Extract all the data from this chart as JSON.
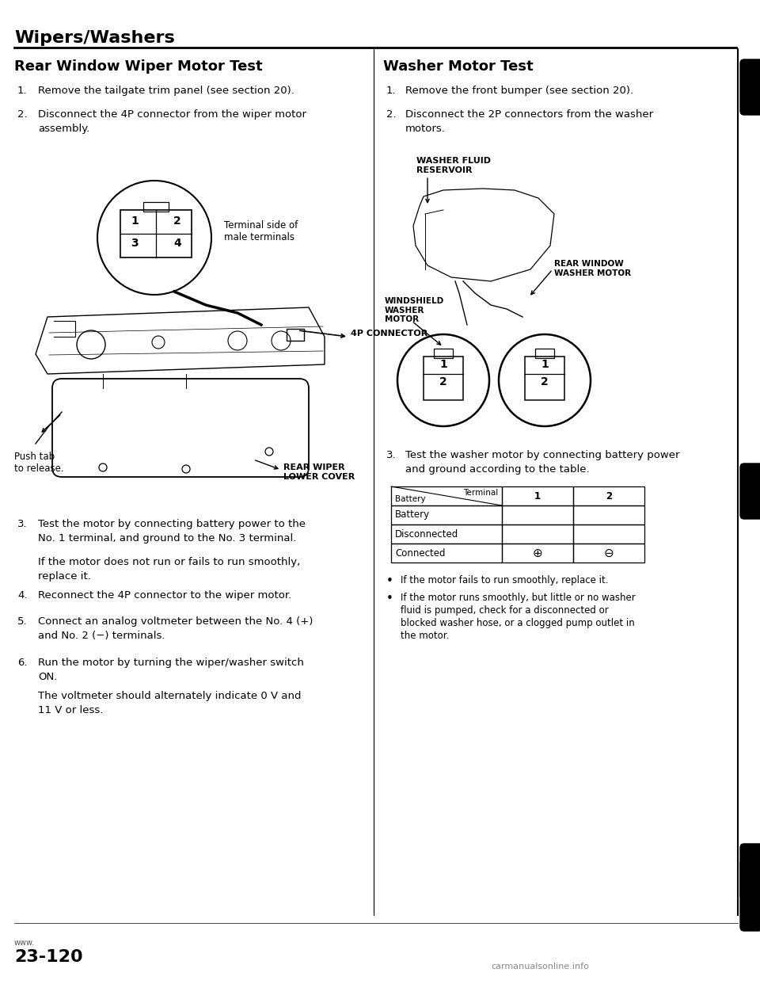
{
  "page_title": "Wipers/Washers",
  "left_section_title": "Rear Window Wiper Motor Test",
  "right_section_title": "Washer Motor Test",
  "left_step1": "Remove the tailgate trim panel (see section 20).",
  "left_step2": "Disconnect the 4P connector from the wiper motor\nassembly.",
  "left_step3a": "Test the motor by connecting battery power to the\nNo. 1 terminal, and ground to the No. 3 terminal.",
  "left_step3b": "If the motor does not run or fails to run smoothly,\nreplace it.",
  "left_step4": "Reconnect the 4P connector to the wiper motor.",
  "left_step5": "Connect an analog voltmeter between the No. 4 (+)\nand No. 2 (−) terminals.",
  "left_step6a": "Run the motor by turning the wiper/washer switch\nON.",
  "left_step6b": "The voltmeter should alternately indicate 0 V and\n11 V or less.",
  "right_step1": "Remove the front bumper (see section 20).",
  "right_step2": "Disconnect the 2P connectors from the washer\nmotors.",
  "right_step3": "Test the washer motor by connecting battery power\nand ground according to the table.",
  "terminal_label": "Terminal side of\nmale terminals",
  "connector_label": "4P CONNECTOR",
  "rear_wiper_label": "REAR WIPER\nLOWER COVER",
  "push_tab_label": "Push tab\nto release.",
  "washer_fluid_label": "WASHER FLUID\nRESERVOIR",
  "windshield_washer_label": "WINDSHIELD\nWASHER\nMOTOR",
  "rear_window_washer_label": "REAR WINDOW\nWASHER MOTOR",
  "table_header_terminal": "Terminal",
  "table_header_battery": "Battery",
  "table_col1": "1",
  "table_col2": "2",
  "table_row1": "Disconnected",
  "table_row2": "Connected",
  "table_connected_1": "⊕",
  "table_connected_2": "⊖",
  "bullet1": "If the motor fails to run smoothly, replace it.",
  "bullet2a": "If the motor runs smoothly, but little or no washer",
  "bullet2b": "fluid is pumped, check for a disconnected or",
  "bullet2c": "blocked washer hose, or a clogged pump outlet in",
  "bullet2d": "the motor.",
  "page_number": "23-120",
  "watermark_left": "www.",
  "watermark_right": "carmanualsonline.info",
  "bg_color": "#ffffff",
  "text_color": "#000000"
}
